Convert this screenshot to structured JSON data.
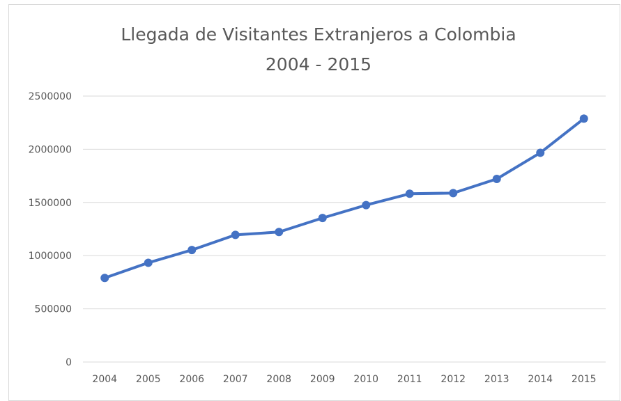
{
  "chart_data": {
    "type": "line",
    "title": "Llegada de Visitantes Extranjeros a Colombia",
    "subtitle": "2004 - 2015",
    "categories": [
      "2004",
      "2005",
      "2006",
      "2007",
      "2008",
      "2009",
      "2010",
      "2011",
      "2012",
      "2013",
      "2014",
      "2015"
    ],
    "series": [
      {
        "values": [
          790000,
          933000,
          1053000,
          1195000,
          1222000,
          1354000,
          1475000,
          1582000,
          1588000,
          1721000,
          1967000,
          2288000
        ],
        "color": "#4472c4"
      }
    ],
    "y_ticks": [
      "0",
      "500000",
      "1000000",
      "1500000",
      "2000000",
      "2500000"
    ],
    "ylim": [
      0,
      2500000
    ],
    "grid": true,
    "legend": "none"
  }
}
